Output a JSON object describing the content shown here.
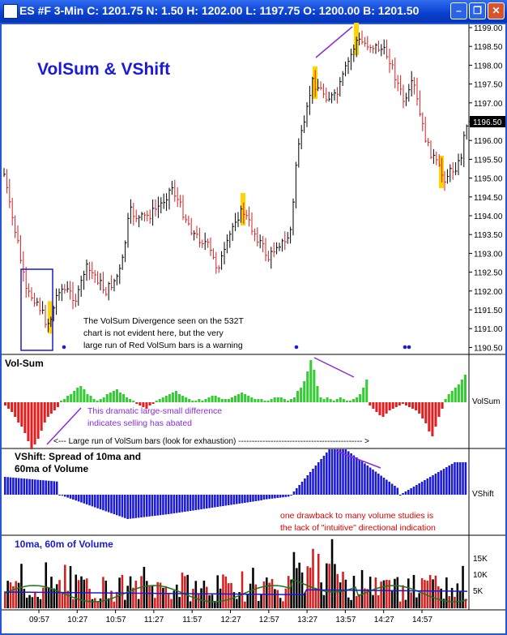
{
  "window": {
    "title": "ES #F 3-Min C: 1201.75 N: 1.50 H: 1202.00 L: 1197.75 O: 1200.00 B: 1201.50",
    "minimize_icon": "minimize-icon",
    "restore_icon": "restore-icon",
    "close_icon": "close-icon"
  },
  "price_panel": {
    "heading": "VolSum & VShift",
    "y_ticks": [
      "1199.00",
      "1198.50",
      "1198.00",
      "1197.50",
      "1197.00",
      "1196.50",
      "1196.00",
      "1195.50",
      "1195.00",
      "1194.50",
      "1194.00",
      "1193.50",
      "1193.00",
      "1192.50",
      "1192.00",
      "1191.50",
      "1191.00",
      "1190.50"
    ],
    "last_price": "1196.50",
    "annotation": [
      "The VolSum Divergence seen on the 532T",
      "chart is not evident here, but the very",
      "large run of Red VolSum bars is a warning"
    ]
  },
  "volsum_panel": {
    "label": "Vol-Sum",
    "axis_label": "VolSum",
    "note": [
      "This dramatic large-small difference",
      "indicates selling has abated"
    ],
    "run_note": "<--- Large run of VolSum bars (look for exhaustion) ---------------------------------------------- >"
  },
  "vshift_panel": {
    "label": [
      "VShift: Spread of 10ma and",
      "60ma of Volume"
    ],
    "axis_label": "VShift",
    "note": [
      "one drawback to many volume studies is",
      "the lack of \"intuitive\" directional indication"
    ]
  },
  "volume_panel": {
    "label": "10ma, 60m of Volume",
    "y_ticks": [
      "15K",
      "10K",
      "5K"
    ]
  },
  "time_axis": [
    "09:57",
    "10:27",
    "10:57",
    "11:27",
    "11:57",
    "12:27",
    "12:57",
    "13:27",
    "13:57",
    "14:27",
    "14:57"
  ],
  "colors": {
    "up": "#000000",
    "down": "#d42020",
    "volsum_up": "#33cc33",
    "volsum_down": "#e02020",
    "vshift": "#1a1ad4",
    "heading": "#1a1ad4",
    "annotation_purple": "#8a2be2",
    "note_red": "#e00000",
    "highlight": "#ffd400",
    "ma10": "#1a7a1a",
    "ma60": "#1a1ad4"
  }
}
